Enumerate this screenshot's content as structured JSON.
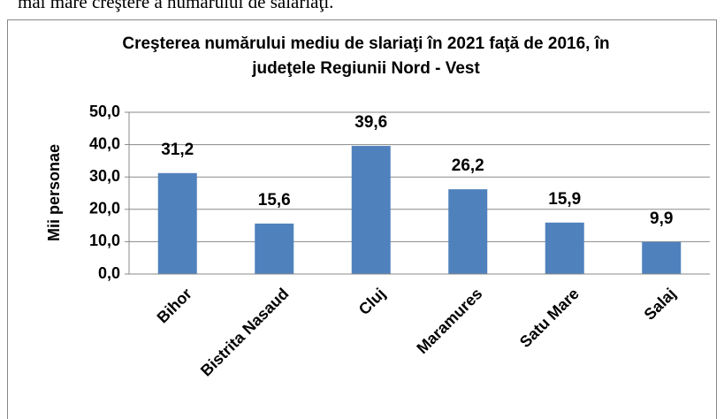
{
  "header_text": "mai mare creştere a numărului de salariaţi.",
  "chart_data": {
    "type": "bar",
    "title": [
      "Creşterea numărului mediu de slariaţi în 2021 faţă de 2016, în",
      "judeţele Regiunii Nord - Vest"
    ],
    "y_label": "Mii personae",
    "categories": [
      "Bihor",
      "Bistrita Nasaud",
      "Cluj",
      "Maramures",
      "Satu Mare",
      "Salaj"
    ],
    "values": [
      31.2,
      15.6,
      39.6,
      26.2,
      15.9,
      9.9
    ],
    "value_labels": [
      "31,2",
      "15,6",
      "39,6",
      "26,2",
      "15,9",
      "9,9"
    ],
    "color": "#4f81bd",
    "ylim": [
      0,
      50
    ],
    "yticks": [
      {
        "value": 0,
        "label": "0,0"
      },
      {
        "value": 10,
        "label": "10,0"
      },
      {
        "value": 20,
        "label": "20,0"
      },
      {
        "value": 30,
        "label": "30,0"
      },
      {
        "value": 40,
        "label": "40,0"
      },
      {
        "value": 50,
        "label": "50,0"
      }
    ],
    "grid": true
  }
}
